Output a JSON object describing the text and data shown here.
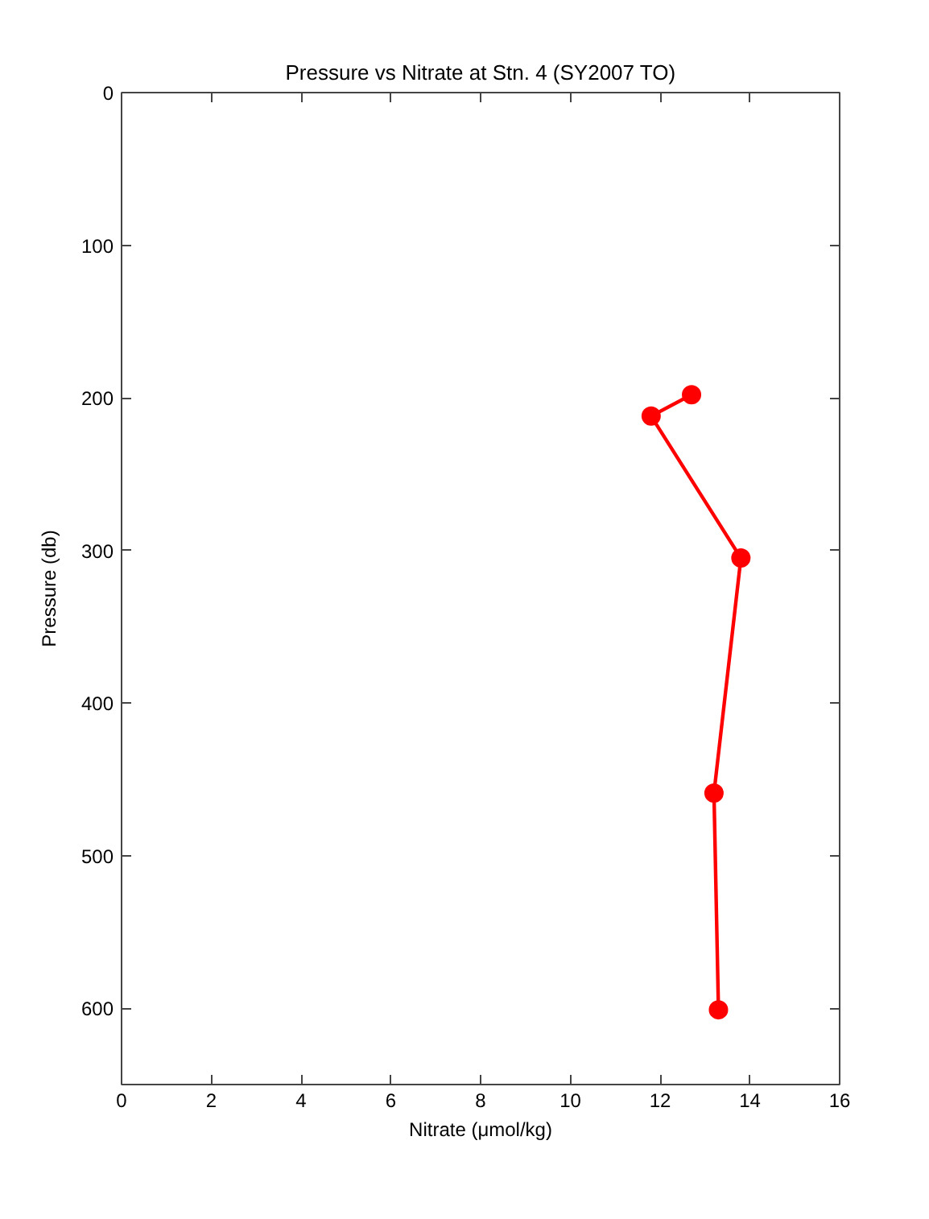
{
  "chart_data": {
    "type": "line",
    "title": "Pressure vs Nitrate at Stn. 4 (SY2007 TO)",
    "xlabel": "Nitrate (μmol/kg)",
    "ylabel": "Pressure (db)",
    "x": [
      12.7,
      11.8,
      13.8,
      13.2,
      13.3
    ],
    "series": [
      {
        "color": "#ff0000",
        "values": [
          198,
          212,
          305,
          459,
          601
        ]
      }
    ],
    "xlim": [
      0,
      16
    ],
    "ylim": [
      650,
      0
    ],
    "xticks": [
      0,
      2,
      4,
      6,
      8,
      10,
      12,
      14,
      16
    ],
    "yticks": [
      0,
      100,
      200,
      300,
      400,
      500,
      600
    ],
    "grid": false,
    "marker": "circle",
    "line_style": "solid"
  }
}
